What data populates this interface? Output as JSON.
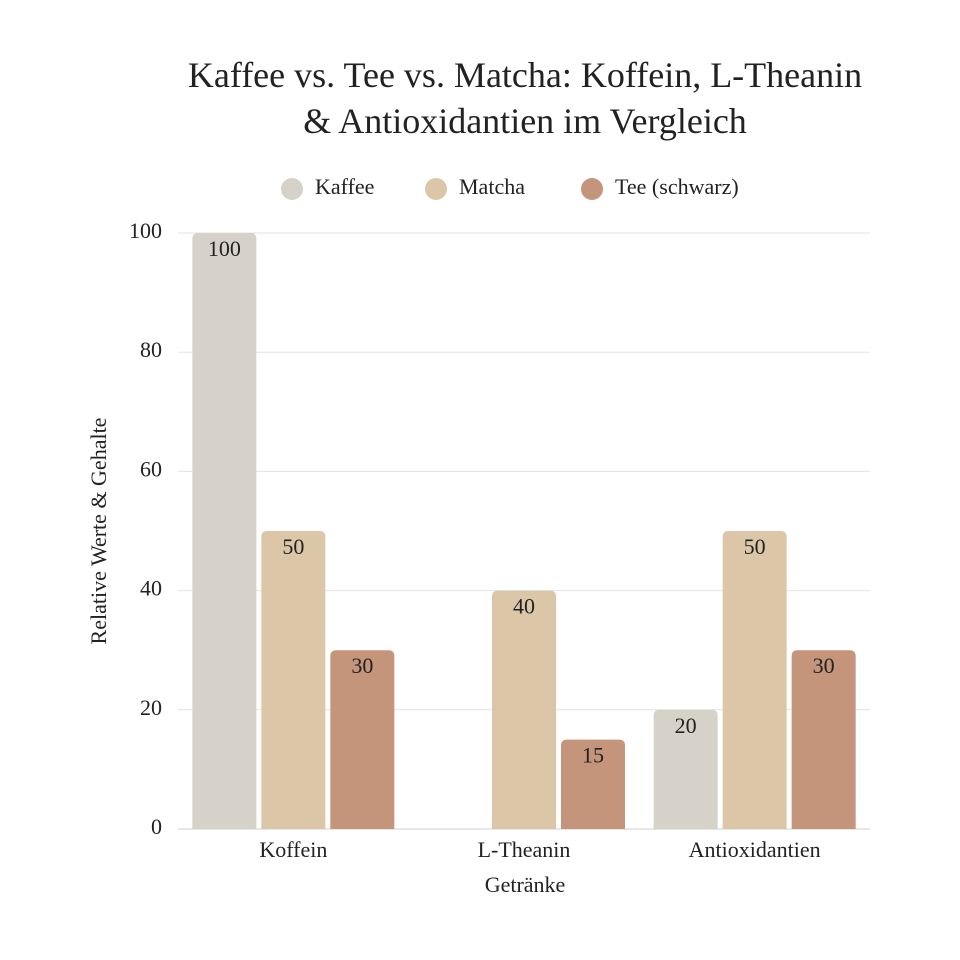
{
  "chart_data": {
    "type": "bar",
    "title": "Kaffee vs. Tee vs. Matcha: Koffein, L-Theanin & Antioxidantien im Vergleich",
    "x_label": "Getränke",
    "y_label": "Relative Werte & Gehalte",
    "categories": [
      "Koffein",
      "L-Theanin",
      "Antioxidantien"
    ],
    "series": [
      {
        "name": "Kaffee",
        "color": "#d6d2ca",
        "values": [
          100,
          null,
          20
        ]
      },
      {
        "name": "Matcha",
        "color": "#dcc6a8",
        "values": [
          50,
          40,
          50
        ]
      },
      {
        "name": "Tee (schwarz)",
        "color": "#c4947b",
        "values": [
          30,
          15,
          30
        ]
      }
    ],
    "ylim": [
      0,
      100
    ],
    "yticks": [
      0,
      20,
      40,
      60,
      80,
      100
    ],
    "grid": true
  }
}
